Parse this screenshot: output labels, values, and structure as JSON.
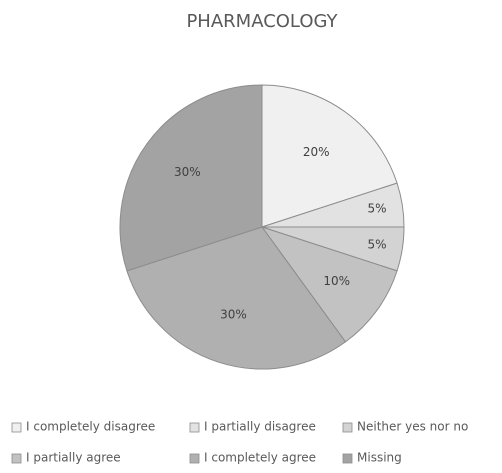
{
  "chart_data": {
    "type": "pie",
    "title": "PHARMACOLOGY",
    "categories": [
      "I completely disagree",
      "I partially disagree",
      "Neither yes nor no",
      "I partially agree",
      "I completely agree",
      "Missing"
    ],
    "values": [
      20,
      5,
      5,
      10,
      30,
      30
    ],
    "value_labels": [
      "20%",
      "5%",
      "5%",
      "10%",
      "30%",
      "30%"
    ],
    "colors": [
      "#f0f0f0",
      "#e2e2e2",
      "#d3d3d3",
      "#c2c2c2",
      "#b0b0b0",
      "#a3a3a3"
    ],
    "legend": "bottom"
  }
}
